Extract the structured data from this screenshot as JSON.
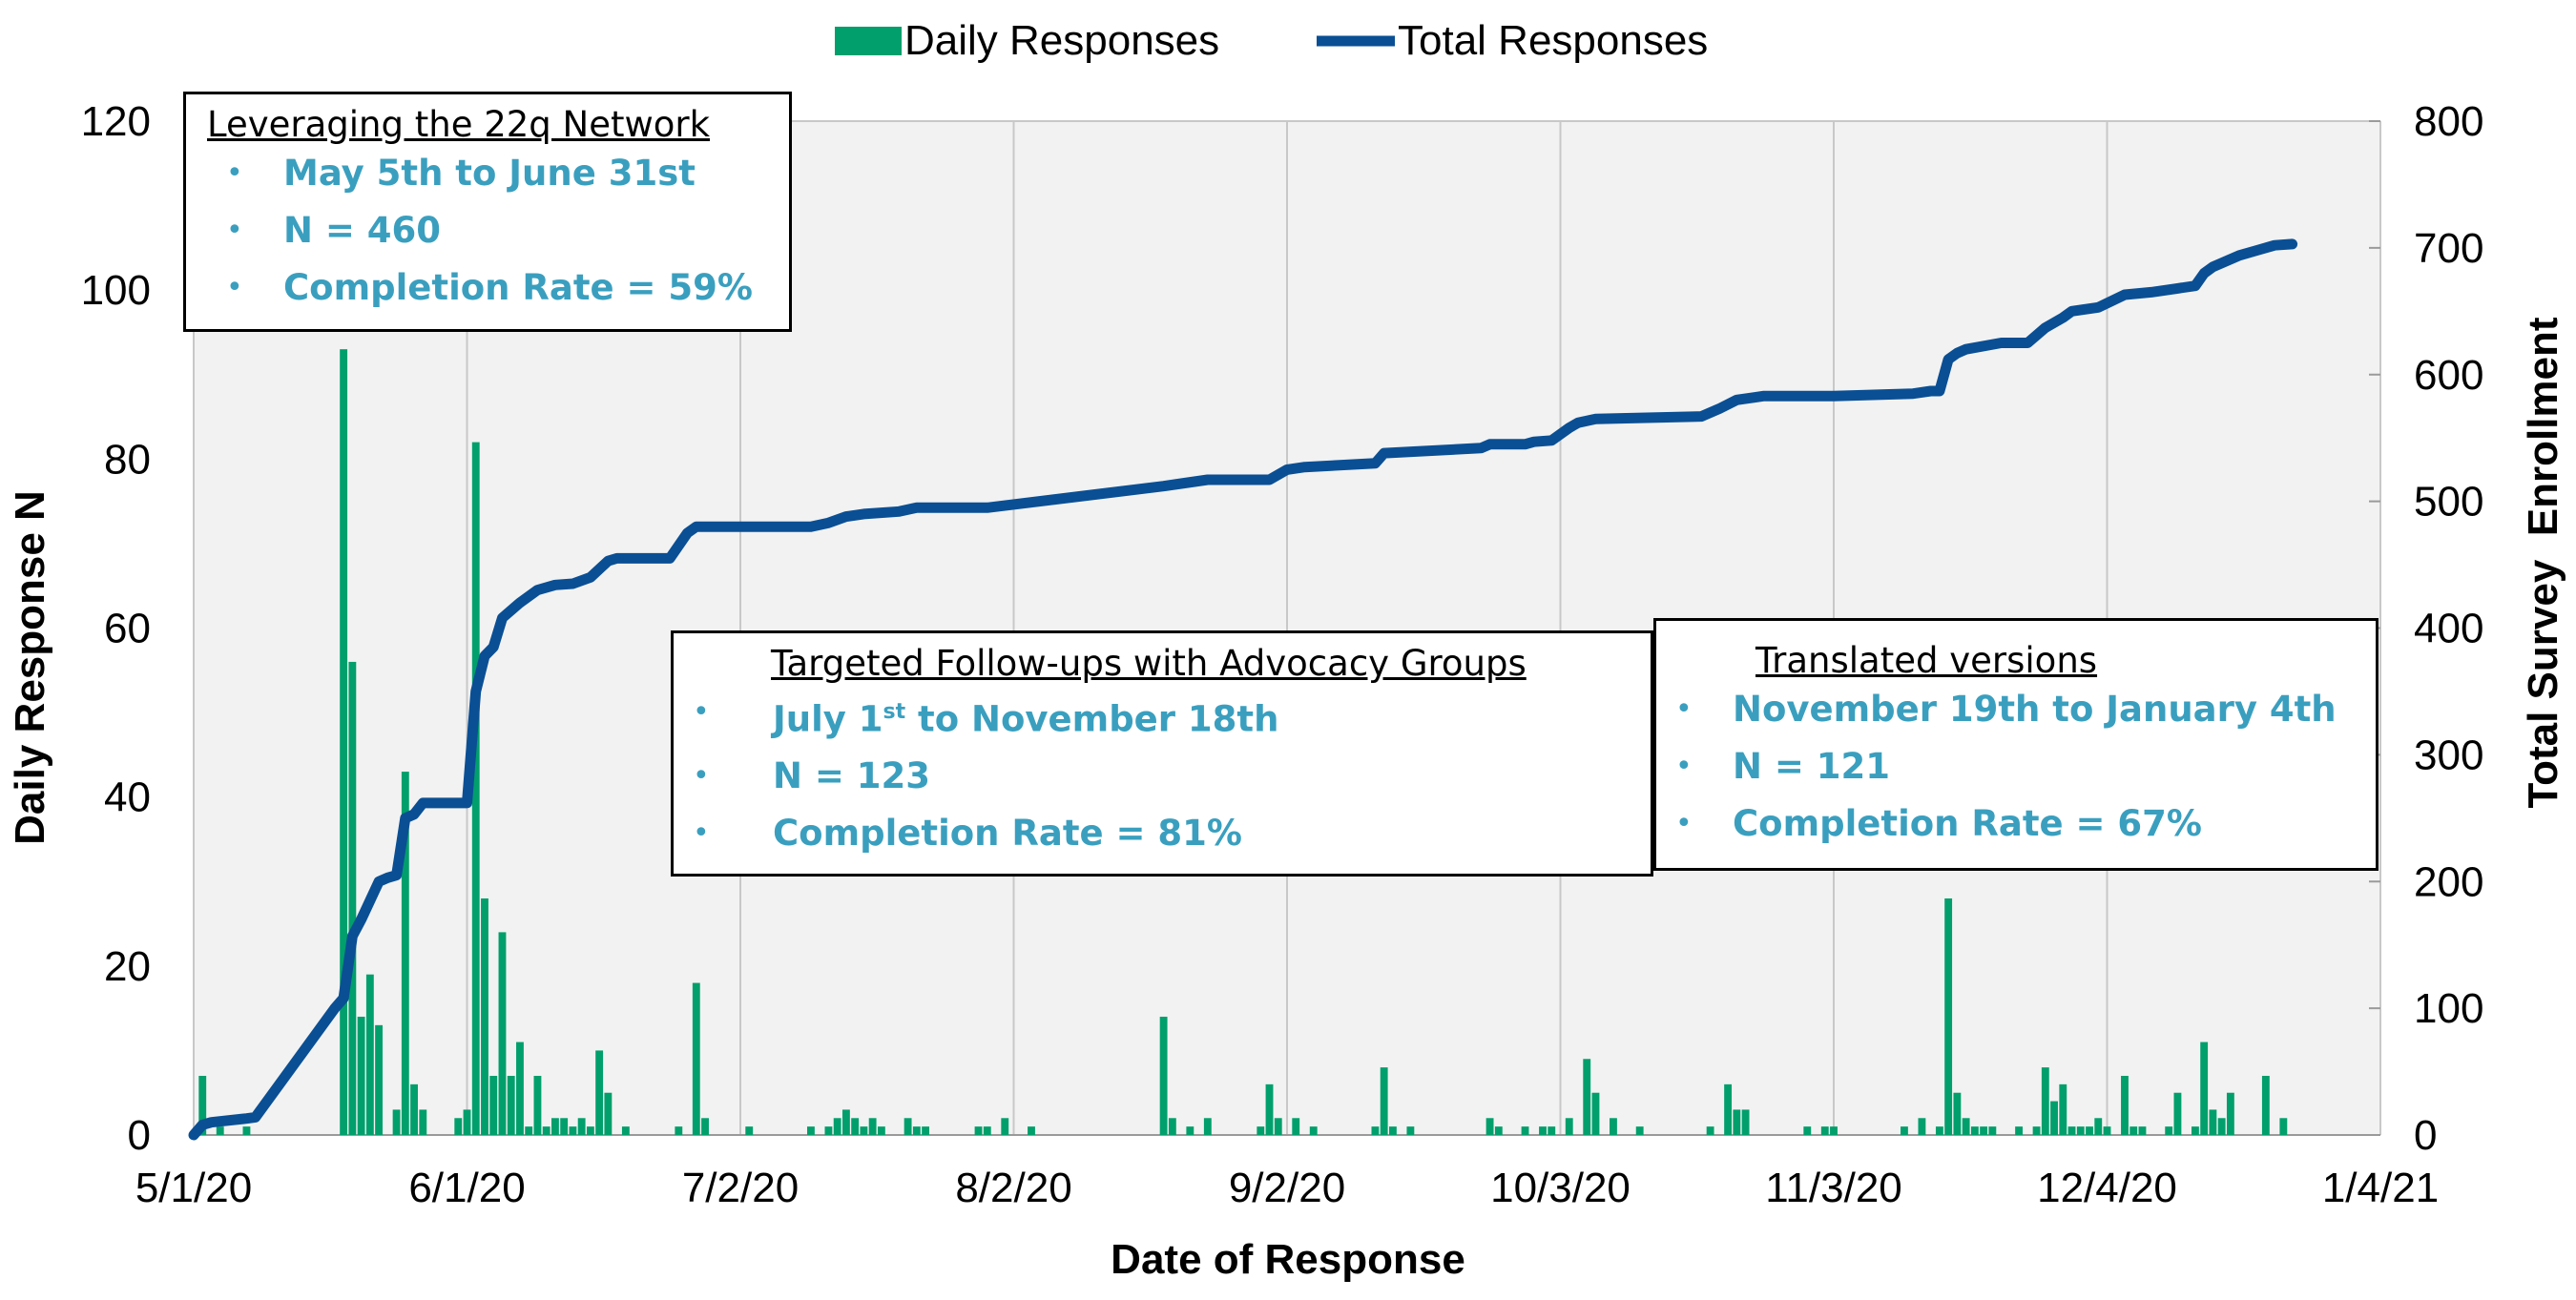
{
  "chart_data": {
    "type": "bar+line",
    "xlabel": "Date of Response",
    "ylabel_left": "Daily Response N",
    "ylabel_right": "Total Survey  Enrollment",
    "x_ticks": [
      "5/1/20",
      "6/1/20",
      "7/2/20",
      "8/2/20",
      "9/2/20",
      "10/3/20",
      "11/3/20",
      "12/4/20",
      "1/4/21"
    ],
    "y_left_ticks": [
      "0",
      "20",
      "40",
      "60",
      "80",
      "100",
      "120"
    ],
    "y_right_ticks": [
      "0",
      "100",
      "200",
      "300",
      "400",
      "500",
      "600",
      "700",
      "800"
    ],
    "ylim_left": [
      0,
      120
    ],
    "ylim_right": [
      0,
      800
    ],
    "x_range_days": [
      0,
      248
    ],
    "legend": [
      "Daily Responses",
      "Total Responses"
    ],
    "colors": {
      "daily": "#009f6b",
      "total": "#0a4f94",
      "plot_bg": "#f2f2f2",
      "grid": "#c8c8c8",
      "annot_text": "#3a9fbf"
    },
    "daily_responses": [
      {
        "day": 1,
        "n": 7
      },
      {
        "day": 3,
        "n": 1
      },
      {
        "day": 6,
        "n": 1
      },
      {
        "day": 17,
        "n": 93
      },
      {
        "day": 18,
        "n": 56
      },
      {
        "day": 19,
        "n": 14
      },
      {
        "day": 20,
        "n": 19
      },
      {
        "day": 21,
        "n": 13
      },
      {
        "day": 23,
        "n": 3
      },
      {
        "day": 24,
        "n": 43
      },
      {
        "day": 25,
        "n": 6
      },
      {
        "day": 26,
        "n": 3
      },
      {
        "day": 30,
        "n": 2
      },
      {
        "day": 31,
        "n": 3
      },
      {
        "day": 32,
        "n": 82
      },
      {
        "day": 33,
        "n": 28
      },
      {
        "day": 34,
        "n": 7
      },
      {
        "day": 35,
        "n": 24
      },
      {
        "day": 36,
        "n": 7
      },
      {
        "day": 37,
        "n": 11
      },
      {
        "day": 38,
        "n": 1
      },
      {
        "day": 39,
        "n": 7
      },
      {
        "day": 40,
        "n": 1
      },
      {
        "day": 41,
        "n": 2
      },
      {
        "day": 42,
        "n": 2
      },
      {
        "day": 43,
        "n": 1
      },
      {
        "day": 44,
        "n": 2
      },
      {
        "day": 45,
        "n": 1
      },
      {
        "day": 46,
        "n": 10
      },
      {
        "day": 47,
        "n": 5
      },
      {
        "day": 49,
        "n": 1
      },
      {
        "day": 55,
        "n": 1
      },
      {
        "day": 57,
        "n": 18
      },
      {
        "day": 58,
        "n": 2
      },
      {
        "day": 63,
        "n": 1
      },
      {
        "day": 70,
        "n": 1
      },
      {
        "day": 72,
        "n": 1
      },
      {
        "day": 73,
        "n": 2
      },
      {
        "day": 74,
        "n": 3
      },
      {
        "day": 75,
        "n": 2
      },
      {
        "day": 76,
        "n": 1
      },
      {
        "day": 77,
        "n": 2
      },
      {
        "day": 78,
        "n": 1
      },
      {
        "day": 81,
        "n": 2
      },
      {
        "day": 82,
        "n": 1
      },
      {
        "day": 83,
        "n": 1
      },
      {
        "day": 89,
        "n": 1
      },
      {
        "day": 90,
        "n": 1
      },
      {
        "day": 92,
        "n": 2
      },
      {
        "day": 95,
        "n": 1
      },
      {
        "day": 110,
        "n": 14
      },
      {
        "day": 111,
        "n": 2
      },
      {
        "day": 113,
        "n": 1
      },
      {
        "day": 115,
        "n": 2
      },
      {
        "day": 121,
        "n": 1
      },
      {
        "day": 122,
        "n": 6
      },
      {
        "day": 123,
        "n": 2
      },
      {
        "day": 125,
        "n": 2
      },
      {
        "day": 127,
        "n": 1
      },
      {
        "day": 134,
        "n": 1
      },
      {
        "day": 135,
        "n": 8
      },
      {
        "day": 136,
        "n": 1
      },
      {
        "day": 138,
        "n": 1
      },
      {
        "day": 147,
        "n": 2
      },
      {
        "day": 148,
        "n": 1
      },
      {
        "day": 151,
        "n": 1
      },
      {
        "day": 153,
        "n": 1
      },
      {
        "day": 154,
        "n": 1
      },
      {
        "day": 156,
        "n": 2
      },
      {
        "day": 158,
        "n": 9
      },
      {
        "day": 159,
        "n": 5
      },
      {
        "day": 161,
        "n": 2
      },
      {
        "day": 164,
        "n": 1
      },
      {
        "day": 172,
        "n": 1
      },
      {
        "day": 174,
        "n": 6
      },
      {
        "day": 175,
        "n": 3
      },
      {
        "day": 176,
        "n": 3
      },
      {
        "day": 183,
        "n": 1
      },
      {
        "day": 185,
        "n": 1
      },
      {
        "day": 186,
        "n": 1
      },
      {
        "day": 194,
        "n": 1
      },
      {
        "day": 196,
        "n": 2
      },
      {
        "day": 198,
        "n": 1
      },
      {
        "day": 199,
        "n": 28
      },
      {
        "day": 200,
        "n": 5
      },
      {
        "day": 201,
        "n": 2
      },
      {
        "day": 202,
        "n": 1
      },
      {
        "day": 203,
        "n": 1
      },
      {
        "day": 204,
        "n": 1
      },
      {
        "day": 207,
        "n": 1
      },
      {
        "day": 209,
        "n": 1
      },
      {
        "day": 210,
        "n": 8
      },
      {
        "day": 211,
        "n": 4
      },
      {
        "day": 212,
        "n": 6
      },
      {
        "day": 213,
        "n": 1
      },
      {
        "day": 214,
        "n": 1
      },
      {
        "day": 215,
        "n": 1
      },
      {
        "day": 216,
        "n": 2
      },
      {
        "day": 217,
        "n": 1
      },
      {
        "day": 219,
        "n": 7
      },
      {
        "day": 220,
        "n": 1
      },
      {
        "day": 221,
        "n": 1
      },
      {
        "day": 224,
        "n": 1
      },
      {
        "day": 225,
        "n": 5
      },
      {
        "day": 227,
        "n": 1
      },
      {
        "day": 228,
        "n": 11
      },
      {
        "day": 229,
        "n": 3
      },
      {
        "day": 230,
        "n": 2
      },
      {
        "day": 231,
        "n": 5
      },
      {
        "day": 235,
        "n": 7
      },
      {
        "day": 237,
        "n": 2
      }
    ],
    "total_responses": [
      {
        "day": 0,
        "total": 0
      },
      {
        "day": 1,
        "total": 8
      },
      {
        "day": 2,
        "total": 10
      },
      {
        "day": 6,
        "total": 13
      },
      {
        "day": 7,
        "total": 14
      },
      {
        "day": 16,
        "total": 100
      },
      {
        "day": 17,
        "total": 108
      },
      {
        "day": 18,
        "total": 157
      },
      {
        "day": 19,
        "total": 170
      },
      {
        "day": 21,
        "total": 200
      },
      {
        "day": 22,
        "total": 203
      },
      {
        "day": 23,
        "total": 205
      },
      {
        "day": 24,
        "total": 250
      },
      {
        "day": 25,
        "total": 253
      },
      {
        "day": 26,
        "total": 262
      },
      {
        "day": 31,
        "total": 262
      },
      {
        "day": 32,
        "total": 350
      },
      {
        "day": 33,
        "total": 378
      },
      {
        "day": 34,
        "total": 385
      },
      {
        "day": 35,
        "total": 408
      },
      {
        "day": 37,
        "total": 420
      },
      {
        "day": 39,
        "total": 430
      },
      {
        "day": 41,
        "total": 434
      },
      {
        "day": 43,
        "total": 435
      },
      {
        "day": 45,
        "total": 440
      },
      {
        "day": 47,
        "total": 453
      },
      {
        "day": 48,
        "total": 455
      },
      {
        "day": 54,
        "total": 455
      },
      {
        "day": 56,
        "total": 475
      },
      {
        "day": 57,
        "total": 480
      },
      {
        "day": 70,
        "total": 480
      },
      {
        "day": 72,
        "total": 483
      },
      {
        "day": 74,
        "total": 488
      },
      {
        "day": 76,
        "total": 490
      },
      {
        "day": 80,
        "total": 492
      },
      {
        "day": 82,
        "total": 495
      },
      {
        "day": 90,
        "total": 495
      },
      {
        "day": 110,
        "total": 512
      },
      {
        "day": 112,
        "total": 514
      },
      {
        "day": 115,
        "total": 517
      },
      {
        "day": 122,
        "total": 517
      },
      {
        "day": 124,
        "total": 525
      },
      {
        "day": 126,
        "total": 527
      },
      {
        "day": 134,
        "total": 530
      },
      {
        "day": 135,
        "total": 538
      },
      {
        "day": 146,
        "total": 542
      },
      {
        "day": 147,
        "total": 545
      },
      {
        "day": 151,
        "total": 545
      },
      {
        "day": 152,
        "total": 547
      },
      {
        "day": 154,
        "total": 548
      },
      {
        "day": 156,
        "total": 558
      },
      {
        "day": 157,
        "total": 562
      },
      {
        "day": 159,
        "total": 565
      },
      {
        "day": 171,
        "total": 567
      },
      {
        "day": 173,
        "total": 573
      },
      {
        "day": 175,
        "total": 580
      },
      {
        "day": 177,
        "total": 582
      },
      {
        "day": 178,
        "total": 583
      },
      {
        "day": 186,
        "total": 583
      },
      {
        "day": 195,
        "total": 585
      },
      {
        "day": 197,
        "total": 587
      },
      {
        "day": 198,
        "total": 587
      },
      {
        "day": 199,
        "total": 612
      },
      {
        "day": 200,
        "total": 617
      },
      {
        "day": 201,
        "total": 620
      },
      {
        "day": 205,
        "total": 625
      },
      {
        "day": 208,
        "total": 625
      },
      {
        "day": 210,
        "total": 637
      },
      {
        "day": 212,
        "total": 645
      },
      {
        "day": 213,
        "total": 650
      },
      {
        "day": 216,
        "total": 653
      },
      {
        "day": 219,
        "total": 663
      },
      {
        "day": 222,
        "total": 665
      },
      {
        "day": 225,
        "total": 668
      },
      {
        "day": 227,
        "total": 670
      },
      {
        "day": 228,
        "total": 680
      },
      {
        "day": 229,
        "total": 685
      },
      {
        "day": 232,
        "total": 694
      },
      {
        "day": 234,
        "total": 698
      },
      {
        "day": 236,
        "total": 702
      },
      {
        "day": 238,
        "total": 703
      }
    ]
  },
  "annotations": [
    {
      "heading": "Leveraging the 22q Network",
      "bullets": [
        "May 5th to June 31st",
        "N = 460",
        "Completion Rate = 59%"
      ]
    },
    {
      "heading": "Targeted Follow-ups with Advocacy Groups",
      "bullet1_pre": "July 1",
      "bullet1_sup": "st",
      "bullet1_post": " to November 18th",
      "bullets": [
        "N = 123",
        "Completion Rate =  81%"
      ]
    },
    {
      "heading": "Translated versions",
      "bullets": [
        "November 19th to January 4th",
        "N  = 121",
        "Completion Rate = 67%"
      ]
    }
  ]
}
